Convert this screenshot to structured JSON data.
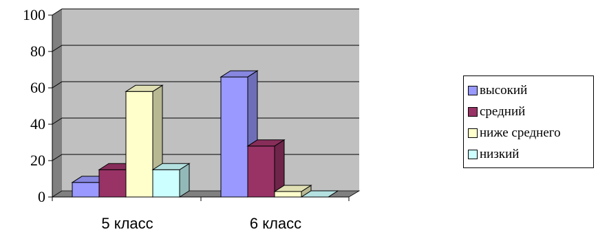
{
  "chart_data": {
    "type": "bar",
    "categories": [
      "5 класс",
      "6 класс"
    ],
    "series": [
      {
        "name": "высокий",
        "color": "#9999FF",
        "values": [
          8,
          66
        ]
      },
      {
        "name": "средний",
        "color": "#993366",
        "values": [
          15,
          28
        ]
      },
      {
        "name": "ниже среднего",
        "color": "#FFFFCC",
        "values": [
          58,
          3
        ]
      },
      {
        "name": "низкий",
        "color": "#CCFFFF",
        "values": [
          15,
          0
        ]
      }
    ],
    "ylim": [
      0,
      100
    ],
    "yticks": [
      "0",
      "20",
      "40",
      "60",
      "80",
      "100"
    ],
    "grid": true,
    "legend": "right",
    "style": "3d-column"
  }
}
